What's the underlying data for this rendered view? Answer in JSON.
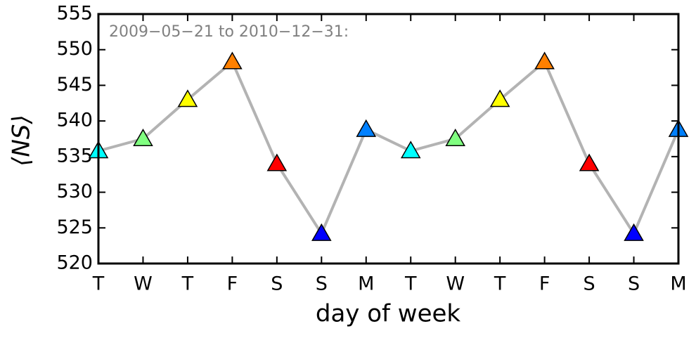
{
  "chart_data": {
    "type": "line",
    "annotation": "2009−05−21 to 2010−12−31:",
    "xlabel": "day of week",
    "ylabel": "⟨NS⟩",
    "categories": [
      "T",
      "W",
      "T",
      "F",
      "S",
      "S",
      "M",
      "T",
      "W",
      "T",
      "F",
      "S",
      "S",
      "M"
    ],
    "values": [
      535.8,
      537.5,
      543.0,
      548.3,
      534.0,
      524.2,
      538.8,
      535.8,
      537.5,
      543.0,
      548.3,
      534.0,
      524.2,
      538.8
    ],
    "line_color": "#b3b3b3",
    "marker_colors": [
      "#00ffff",
      "#80ff80",
      "#ffff00",
      "#ff8000",
      "#ff0000",
      "#0000ff",
      "#0080ff",
      "#00ffff",
      "#80ff80",
      "#ffff00",
      "#ff8000",
      "#ff0000",
      "#0000ff",
      "#0080ff"
    ],
    "ylim": [
      520,
      555
    ],
    "yticks": [
      520,
      525,
      530,
      535,
      540,
      545,
      550,
      555
    ]
  }
}
